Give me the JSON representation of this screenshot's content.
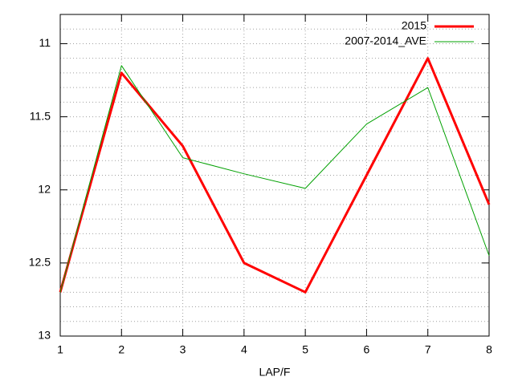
{
  "chart_data": {
    "type": "line",
    "xlabel": "LAP/F",
    "x": [
      1,
      2,
      3,
      4,
      5,
      6,
      7,
      8
    ],
    "series": [
      {
        "name": "2015",
        "color": "#ff0000",
        "width": 3,
        "values": [
          12.7,
          11.2,
          11.7,
          12.5,
          12.7,
          11.9,
          11.1,
          12.1
        ]
      },
      {
        "name": "2007-2014_AVE",
        "color": "#00a000",
        "width": 1,
        "values": [
          12.7,
          11.15,
          11.78,
          11.89,
          11.99,
          11.55,
          11.3,
          12.45
        ]
      }
    ],
    "xlim": [
      1,
      8
    ],
    "xticks": [
      1,
      2,
      3,
      4,
      5,
      6,
      7,
      8
    ],
    "ylim": [
      13,
      10.8
    ],
    "yticks": [
      11,
      11.5,
      12,
      12.5,
      13
    ],
    "y_minor_ticks": [
      10.9,
      11.1,
      11.2,
      11.3,
      11.4,
      11.6,
      11.7,
      11.8,
      11.9,
      12.1,
      12.2,
      12.3,
      12.4,
      12.6,
      12.7,
      12.8,
      12.9
    ],
    "grid": true,
    "legend": "top-right"
  }
}
